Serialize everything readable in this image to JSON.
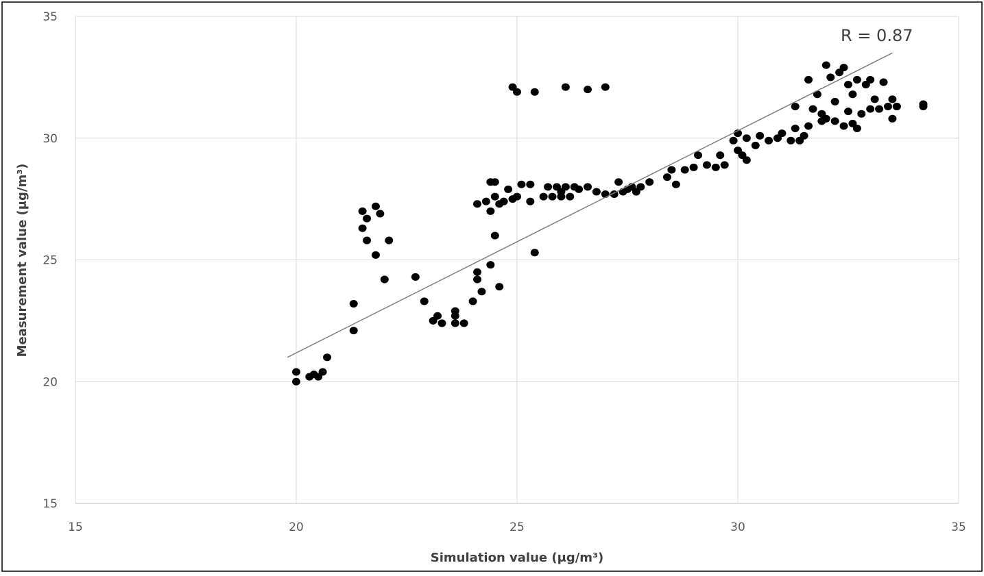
{
  "chart_data": {
    "type": "scatter",
    "x_label": "Simulation value (μg/m³)",
    "y_label": "Measurement value (μg/m³)",
    "annotation": "R = 0.87",
    "xlim": [
      15,
      35
    ],
    "ylim": [
      15,
      35
    ],
    "xticks": [
      15,
      20,
      25,
      30,
      35
    ],
    "yticks": [
      15,
      20,
      25,
      30,
      35
    ],
    "grid": true,
    "series": [
      {
        "color": "#000000",
        "x": [
          20.0,
          20.0,
          20.3,
          20.4,
          20.5,
          20.6,
          20.7,
          21.3,
          21.3,
          21.5,
          21.5,
          21.6,
          21.6,
          21.8,
          21.8,
          21.9,
          22.0,
          22.1,
          22.7,
          22.9,
          23.1,
          23.2,
          23.3,
          23.6,
          23.6,
          23.6,
          23.8,
          24.0,
          24.1,
          24.1,
          24.2,
          24.1,
          24.3,
          24.4,
          24.4,
          24.5,
          24.5,
          24.4,
          24.5,
          24.6,
          24.6,
          24.7,
          24.8,
          24.9,
          25.0,
          25.1,
          25.3,
          25.3,
          25.4,
          24.9,
          25.0,
          25.4,
          26.1,
          26.6,
          27.0,
          25.6,
          25.7,
          25.8,
          25.9,
          26.0,
          26.0,
          26.1,
          26.2,
          26.3,
          26.4,
          26.6,
          26.8,
          27.0,
          27.2,
          27.3,
          27.4,
          27.5,
          27.6,
          27.7,
          27.8,
          28.0,
          28.4,
          28.5,
          28.6,
          28.8,
          29.0,
          29.1,
          29.3,
          29.5,
          29.6,
          29.7,
          29.9,
          30.0,
          30.0,
          30.1,
          30.2,
          30.2,
          30.4,
          30.5,
          30.7,
          30.9,
          31.0,
          31.2,
          31.3,
          31.3,
          31.4,
          31.5,
          31.6,
          31.6,
          31.7,
          31.8,
          31.9,
          31.9,
          32.0,
          32.0,
          32.1,
          32.2,
          32.2,
          32.3,
          32.4,
          32.4,
          32.5,
          32.5,
          32.6,
          32.6,
          32.7,
          32.7,
          32.8,
          32.9,
          33.0,
          33.0,
          33.1,
          33.2,
          33.3,
          33.4,
          33.5,
          33.5,
          33.6,
          33.6,
          34.2,
          34.2
        ],
        "y": [
          20.0,
          20.4,
          20.2,
          20.3,
          20.2,
          20.4,
          21.0,
          23.2,
          22.1,
          27.0,
          26.3,
          26.7,
          25.8,
          27.2,
          25.2,
          26.9,
          24.2,
          25.8,
          24.3,
          23.3,
          22.5,
          22.7,
          22.4,
          22.4,
          22.7,
          22.9,
          22.4,
          23.3,
          24.5,
          24.2,
          23.7,
          27.3,
          27.4,
          27.0,
          24.8,
          26.0,
          28.2,
          28.2,
          27.6,
          23.9,
          27.3,
          27.4,
          27.9,
          27.5,
          27.6,
          28.1,
          28.1,
          27.4,
          25.3,
          32.1,
          31.9,
          31.9,
          32.1,
          32.0,
          32.1,
          27.6,
          28.0,
          27.6,
          28.0,
          27.6,
          27.8,
          28.0,
          27.6,
          28.0,
          27.9,
          28.0,
          27.8,
          27.7,
          27.7,
          28.2,
          27.8,
          27.9,
          28.0,
          27.8,
          28.0,
          28.2,
          28.4,
          28.7,
          28.1,
          28.7,
          28.8,
          29.3,
          28.9,
          28.8,
          29.3,
          28.9,
          29.9,
          30.2,
          29.5,
          29.3,
          30.0,
          29.1,
          29.7,
          30.1,
          29.9,
          30.0,
          30.2,
          29.9,
          31.3,
          30.4,
          29.9,
          30.1,
          30.5,
          32.4,
          31.2,
          31.8,
          30.7,
          31.0,
          33.0,
          30.8,
          32.5,
          30.7,
          31.5,
          32.7,
          30.5,
          32.9,
          31.1,
          32.2,
          30.6,
          31.8,
          32.4,
          30.4,
          31.0,
          32.2,
          31.2,
          32.4,
          31.6,
          31.2,
          32.3,
          31.3,
          30.8,
          31.6,
          31.3,
          31.3,
          31.4,
          31.3
        ]
      }
    ],
    "trendline": {
      "color": "#7f7f7f",
      "x": [
        19.8,
        33.5
      ],
      "y": [
        21.0,
        33.5
      ]
    }
  }
}
